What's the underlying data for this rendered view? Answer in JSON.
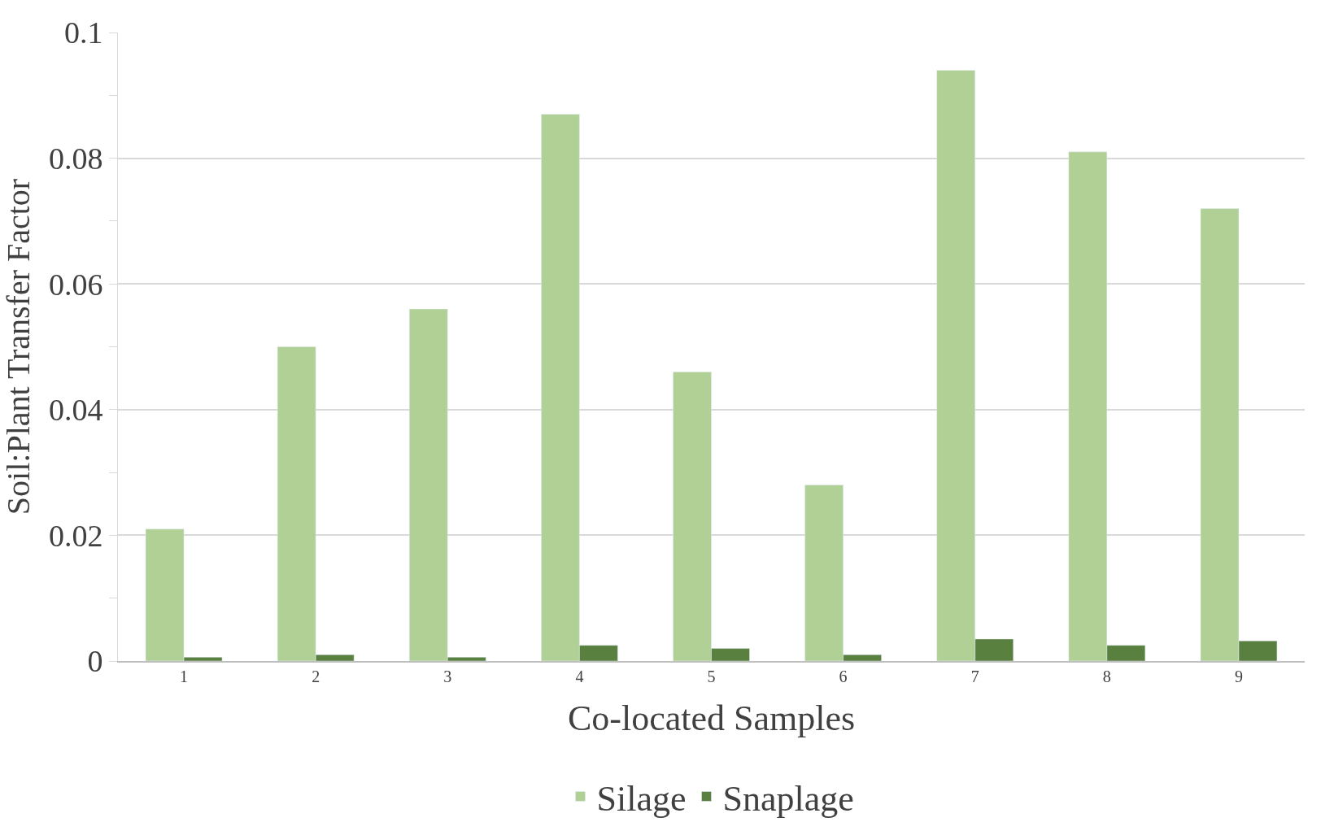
{
  "chart_data": {
    "type": "bar",
    "xlabel": "Co-located Samples",
    "ylabel": "Soil:Plant Transfer Factor",
    "categories": [
      "1",
      "2",
      "3",
      "4",
      "5",
      "6",
      "7",
      "8",
      "9"
    ],
    "series": [
      {
        "name": "Silage",
        "color": "#b1d096",
        "values": [
          0.021,
          0.05,
          0.056,
          0.087,
          0.046,
          0.028,
          0.094,
          0.081,
          0.072
        ]
      },
      {
        "name": "Snaplage",
        "color": "#5a8040",
        "values": [
          0.0006,
          0.001,
          0.0006,
          0.0025,
          0.002,
          0.001,
          0.0035,
          0.0025,
          0.0032
        ]
      }
    ],
    "ylim": [
      0,
      0.1
    ],
    "yticks": [
      0,
      0.02,
      0.04,
      0.06,
      0.08,
      0.1
    ],
    "grid": "y",
    "legend": "bottom"
  }
}
